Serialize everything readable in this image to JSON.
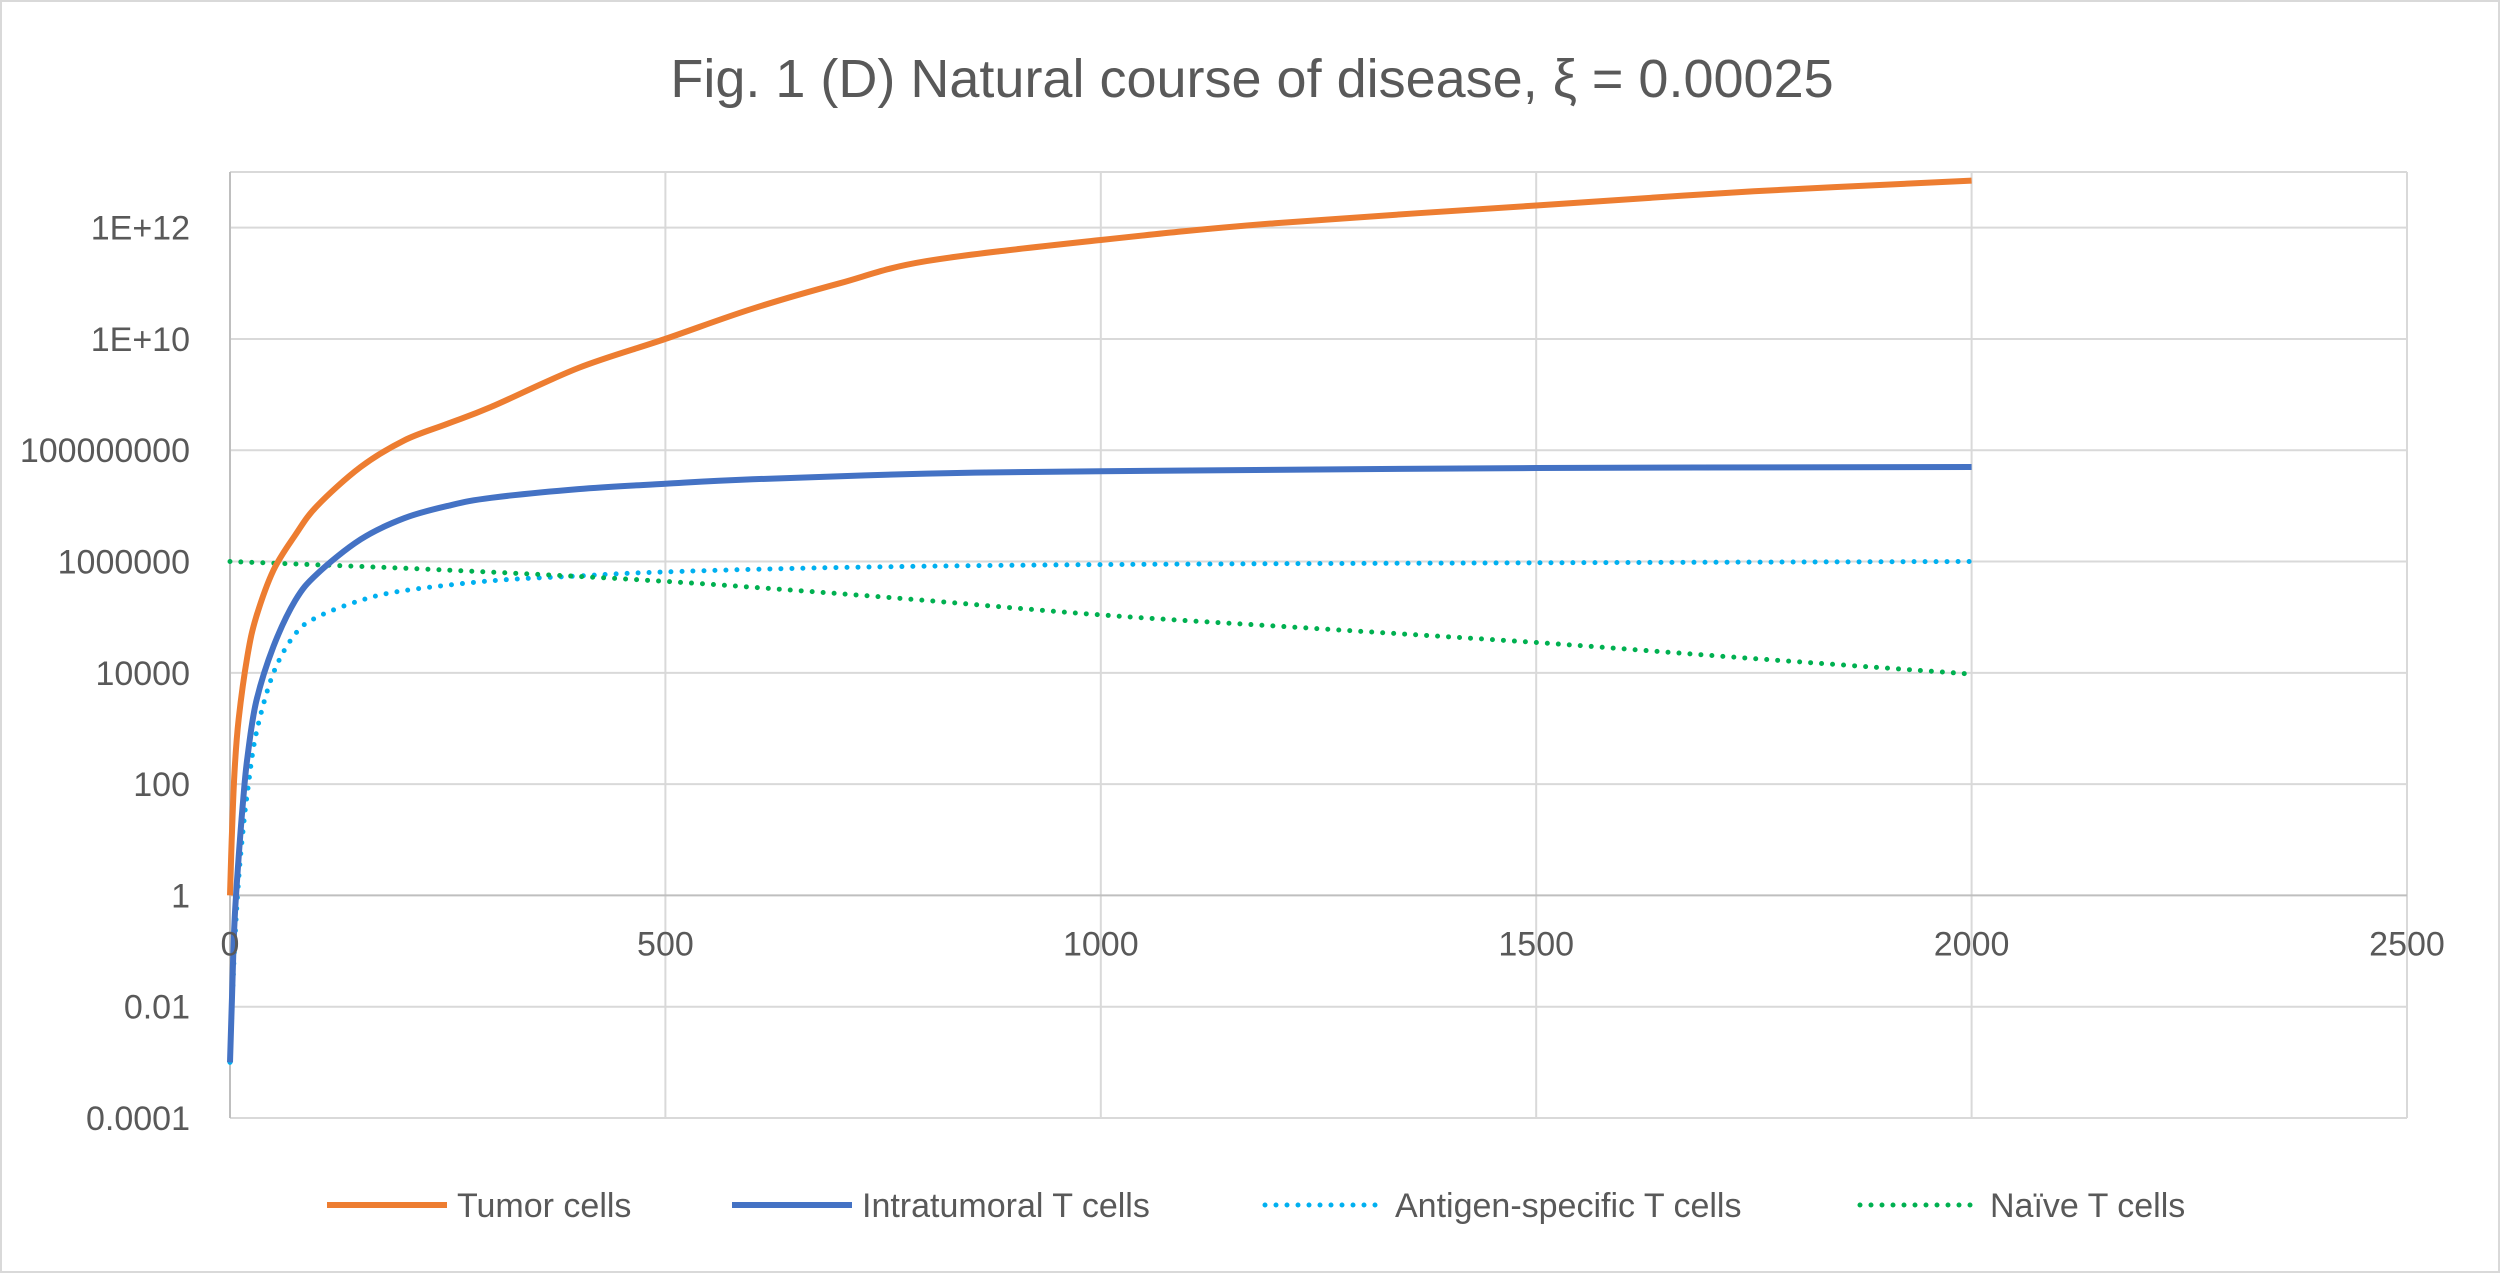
{
  "chart_data": {
    "type": "line",
    "title": "Fig. 1 (D) Natural course of disease, ξ = 0.00025",
    "xlabel": "",
    "ylabel": "",
    "x_scale": "linear",
    "y_scale": "log",
    "xlim": [
      0,
      2500
    ],
    "ylim": [
      0.0001,
      10000000000000
    ],
    "x_ticks": [
      0,
      500,
      1000,
      1500,
      2000,
      2500
    ],
    "x_tick_labels": [
      "0",
      "500",
      "1000",
      "1500",
      "2000",
      "2500"
    ],
    "y_ticks": [
      0.0001,
      0.01,
      1,
      100,
      10000,
      1000000,
      100000000,
      10000000000,
      1000000000000
    ],
    "y_tick_labels": [
      "0.0001",
      "0.01",
      "1",
      "100",
      "10000",
      "1000000",
      "100000000",
      "1E+10",
      "1E+12"
    ],
    "grid": true,
    "legend_position": "bottom",
    "series": [
      {
        "name": "Tumor cells",
        "color": "#ED7D31",
        "style": "solid",
        "x": [
          0,
          2,
          5,
          10,
          20,
          30,
          50,
          75,
          100,
          150,
          200,
          250,
          300,
          400,
          500,
          600,
          700,
          800,
          1000,
          1200,
          1500,
          1750,
          2000
        ],
        "y": [
          1,
          10,
          150,
          1500,
          20000,
          100000,
          700000,
          3000000,
          10000000,
          50000000,
          150000000,
          300000000,
          600000000,
          3000000000,
          10000000000,
          35000000000,
          100000000000,
          250000000000,
          600000000000,
          1200000000000,
          2500000000000,
          4500000000000,
          7000000000000
        ]
      },
      {
        "name": "Intratumoral T cells",
        "color": "#4472C4",
        "style": "solid",
        "x": [
          0,
          2,
          5,
          10,
          15,
          20,
          30,
          50,
          75,
          100,
          150,
          200,
          250,
          300,
          400,
          500,
          600,
          800,
          1000,
          1500,
          2000
        ],
        "y": [
          0.001,
          0.01,
          0.3,
          5,
          50,
          300,
          3000,
          30000,
          200000,
          600000,
          2500000,
          6000000,
          10000000,
          14000000,
          20000000,
          25000000,
          30000000,
          38000000,
          42000000,
          48000000,
          50000000
        ]
      },
      {
        "name": "Antigen-specific T cells",
        "color": "#00B0F0",
        "style": "dotted",
        "x": [
          0,
          5,
          10,
          15,
          20,
          30,
          50,
          75,
          100,
          150,
          200,
          300,
          400,
          500,
          700,
          1000,
          1500,
          2000
        ],
        "y": [
          0.001,
          0.1,
          2,
          15,
          70,
          800,
          10000,
          50000,
          100000,
          200000,
          300000,
          450000,
          550000,
          650000,
          780000,
          880000,
          950000,
          1000000
        ]
      },
      {
        "name": "Naïve T cells",
        "color": "#00B050",
        "style": "dotted",
        "x": [
          0,
          250,
          500,
          750,
          1000,
          1250,
          1500,
          1750,
          2000
        ],
        "y": [
          1000000,
          700000,
          440000,
          230000,
          110000,
          62000,
          35000,
          18000,
          9500
        ]
      }
    ]
  }
}
